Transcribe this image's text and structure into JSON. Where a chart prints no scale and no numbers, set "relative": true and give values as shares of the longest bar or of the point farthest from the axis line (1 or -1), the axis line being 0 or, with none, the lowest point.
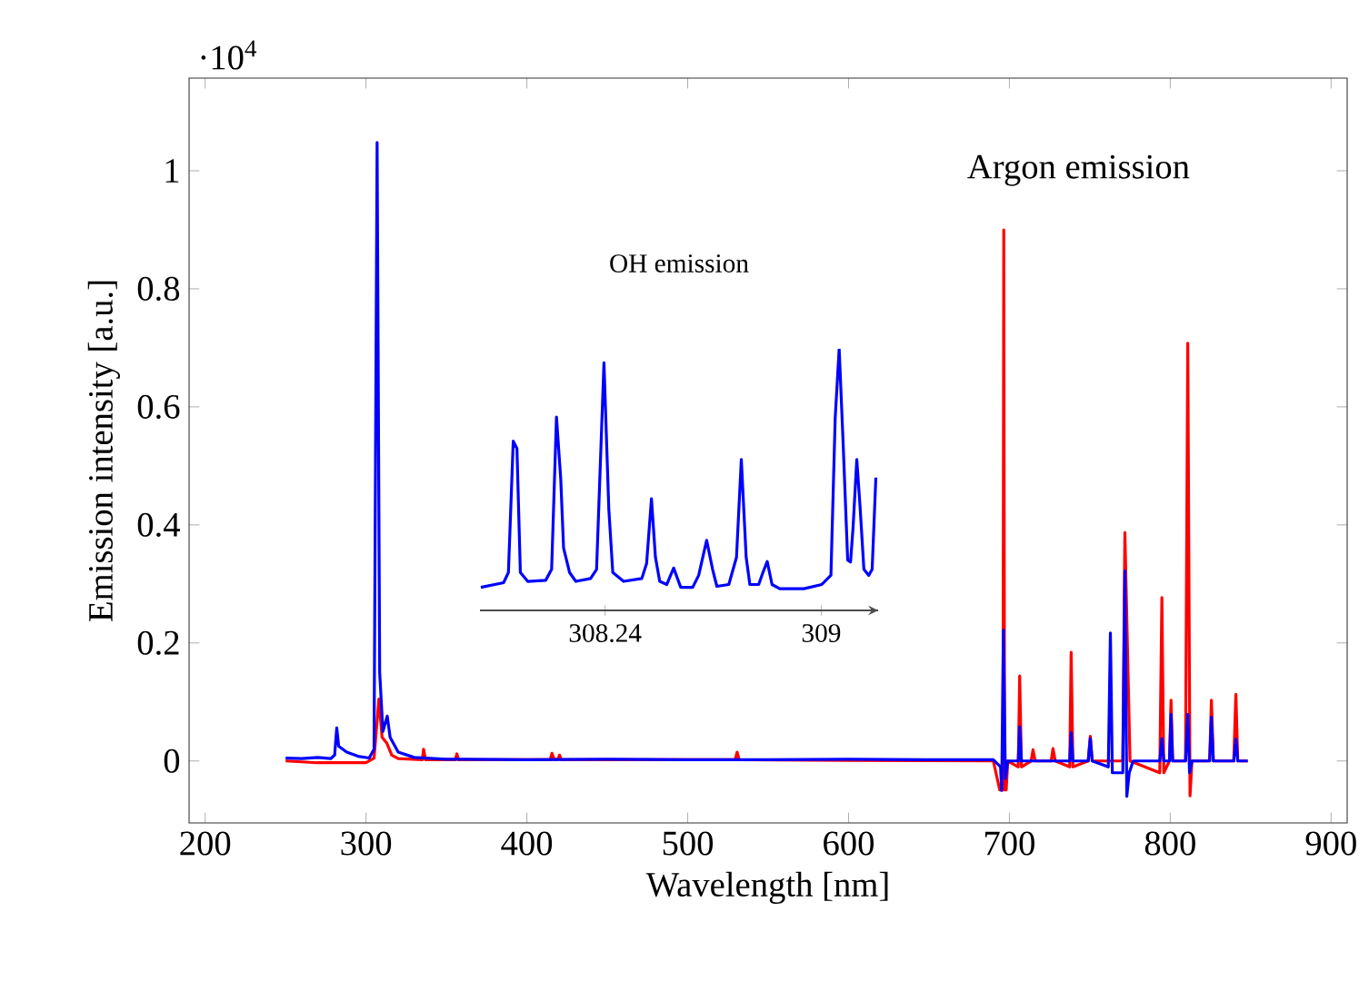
{
  "chart_data": [
    {
      "type": "line",
      "xlabel": "Wavelength [nm]",
      "ylabel": "Emission intensity [a.u.]",
      "xlim": [
        190,
        910
      ],
      "ylim": [
        -0.105,
        1.157
      ],
      "xticks": [
        200,
        300,
        400,
        500,
        600,
        700,
        800,
        900
      ],
      "yticks": [
        0,
        0.2,
        0.4,
        0.6,
        0.8,
        1
      ],
      "annotations": [
        "Argon emission",
        "·10$^{4}$"
      ],
      "series": [
        {
          "color": "#ff0000",
          "x": [
            250,
            270,
            300,
            305,
            308,
            310,
            313,
            316,
            320,
            335,
            335.8,
            337,
            355.5,
            356.5,
            357.5,
            414.5,
            415.6,
            417,
            419.5,
            420.3,
            421.5,
            529.5,
            530.7,
            532,
            600,
            690,
            694,
            696,
            696.5,
            697,
            698,
            699,
            705.5,
            706.4,
            707.5,
            713.5,
            714.7,
            716,
            726,
            727.1,
            728.5,
            737.5,
            738.4,
            739.5,
            749,
            750.3,
            751.5,
            761.5,
            762.8,
            764,
            770.5,
            771.8,
            773,
            775,
            793.5,
            794.8,
            796,
            799.5,
            800.5,
            801.5,
            809.5,
            810.9,
            812.3,
            813.5,
            824.5,
            825.6,
            826.8,
            839.5,
            840.8,
            842,
            848.2
          ],
          "values": [
            0,
            -0.003,
            -0.003,
            0.005,
            0.105,
            0.04,
            0.03,
            0.01,
            0.004,
            0.002,
            0.02,
            0.002,
            0.002,
            0.012,
            0.002,
            0.002,
            0.013,
            0.003,
            0.003,
            0.01,
            0.002,
            0.002,
            0.015,
            0.002,
            0.001,
            0,
            -0.049,
            -0.049,
            0.9,
            -0.049,
            -0.049,
            0,
            -0.01,
            0.144,
            -0.01,
            0,
            0.019,
            0,
            0,
            0.021,
            0,
            -0.01,
            0.184,
            -0.01,
            0,
            0.042,
            0,
            0,
            null,
            0,
            0,
            0.387,
            null,
            0,
            -0.02,
            0.277,
            -0.02,
            0,
            0.103,
            0,
            0,
            0.708,
            -0.059,
            0,
            0,
            0.103,
            0,
            0,
            0.113,
            0,
            0
          ]
        },
        {
          "color": "#0000ff",
          "x": [
            250,
            260,
            270,
            278,
            280.5,
            281.8,
            283,
            288,
            295,
            302,
            305,
            306.9,
            308.5,
            310.5,
            313.2,
            315,
            320,
            330,
            350,
            400,
            450,
            500,
            550,
            600,
            650,
            690,
            694.5,
            695.2,
            696.3,
            697.5,
            699,
            705.5,
            706.4,
            707.5,
            737.5,
            738.4,
            739.5,
            749,
            750.3,
            751.5,
            761.5,
            762.8,
            764,
            770.5,
            771.8,
            773,
            774.5,
            777,
            793.5,
            794.8,
            796,
            799.5,
            800.5,
            801.5,
            809.5,
            810.9,
            812,
            813.5,
            824.5,
            825.6,
            826.8,
            839.5,
            840.8,
            842,
            848.2
          ],
          "values": [
            0.005,
            0.004,
            0.006,
            0.004,
            0.01,
            0.056,
            0.025,
            0.015,
            0.008,
            0.005,
            0.02,
            1.048,
            0.15,
            0.05,
            0.076,
            0.04,
            0.015,
            0.006,
            0.003,
            0.002,
            0.003,
            0.002,
            0.002,
            0.003,
            0.002,
            0.002,
            -0.01,
            -0.05,
            0.222,
            -0.03,
            0,
            0,
            0.058,
            0,
            0,
            0.048,
            0,
            0,
            0.038,
            0,
            -0.01,
            0.217,
            -0.02,
            -0.02,
            0.322,
            -0.06,
            -0.02,
            0,
            0,
            0.038,
            0,
            0,
            0.079,
            0,
            0,
            0.079,
            -0.02,
            0,
            0,
            0.074,
            0,
            0,
            0.037,
            0,
            0
          ]
        }
      ]
    },
    {
      "type": "line",
      "title": "OH emission",
      "relative": true,
      "xlim": [
        307.8,
        309.2
      ],
      "xticks": [
        308.24,
        309
      ],
      "series": [
        {
          "color": "#0000ff",
          "x": [
            307.803,
            307.883,
            307.9,
            307.917,
            307.93,
            307.942,
            307.968,
            308.031,
            308.052,
            308.069,
            308.084,
            308.094,
            308.115,
            308.137,
            308.189,
            308.21,
            308.236,
            308.253,
            308.267,
            308.305,
            308.369,
            308.386,
            308.403,
            308.417,
            308.432,
            308.457,
            308.481,
            308.506,
            308.548,
            308.569,
            308.597,
            308.618,
            308.633,
            308.675,
            308.702,
            308.719,
            308.736,
            308.749,
            308.78,
            308.795,
            308.81,
            308.827,
            308.854,
            308.939,
            309.002,
            309.034,
            309.049,
            309.063,
            309.076,
            309.093,
            309.103,
            309.112,
            309.125,
            309.137,
            309.15,
            309.167,
            309.179,
            309.192
          ],
          "values": [
            0.088,
            0.106,
            0.145,
            0.647,
            0.619,
            0.145,
            0.111,
            0.115,
            0.157,
            0.739,
            0.503,
            0.238,
            0.145,
            0.111,
            0.122,
            0.157,
            0.947,
            0.388,
            0.145,
            0.111,
            0.122,
            0.18,
            0.427,
            0.203,
            0.111,
            0.099,
            0.162,
            0.088,
            0.088,
            0.134,
            0.268,
            0.157,
            0.092,
            0.099,
            0.203,
            0.577,
            0.203,
            0.099,
            0.099,
            0.145,
            0.187,
            0.099,
            0.083,
            0.083,
            0.099,
            0.134,
            0.734,
            1,
            0.665,
            0.192,
            0.185,
            0.319,
            0.577,
            0.388,
            0.157,
            0.134,
            0.157,
            0.508
          ]
        }
      ]
    }
  ]
}
